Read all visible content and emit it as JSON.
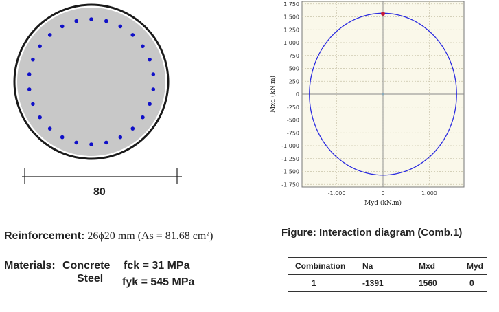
{
  "section": {
    "dimension_label": "80",
    "bar_count": 26
  },
  "reinforcement": {
    "label": "Reinforcement:",
    "value": "26ϕ20 mm (As = 81.68 cm²)"
  },
  "materials": {
    "label": "Materials:",
    "concrete_label": "Concrete",
    "concrete_value": "fck = 31 MPa",
    "steel_label": "Steel",
    "steel_value": "fyk = 545 MPa"
  },
  "figure_caption": "Figure: Interaction diagram (Comb.1)",
  "colors": {
    "section_fill": "#c8c8c8",
    "section_edge": "#1a1a1a",
    "bar_color": "#1010c8",
    "plot_bg": "#faf8ea",
    "curve_color": "#2a2ae0",
    "point_color": "#c41a3a",
    "grid_color": "#c8c2a8"
  },
  "chart_data": {
    "type": "line",
    "title": "",
    "xlabel": "Myd (kN.m)",
    "ylabel": "Mxd (kN.m)",
    "xlim": [
      -1750,
      1750
    ],
    "ylim": [
      -1800,
      1800
    ],
    "x_ticks": [
      -1000,
      0,
      1000
    ],
    "x_tick_labels": [
      "-1.000",
      "0",
      "1.000"
    ],
    "y_ticks": [
      1750,
      1500,
      1250,
      1000,
      750,
      500,
      250,
      0,
      -250,
      -500,
      -750,
      -1000,
      -1250,
      -1500,
      -1750
    ],
    "y_tick_labels": [
      "1.750",
      "1.500",
      "1.250",
      "1.000",
      "750",
      "500",
      "250",
      "0",
      "-250",
      "-500",
      "-750",
      "-1.000",
      "-1.250",
      "-1.500",
      "-1.750"
    ],
    "grid": true,
    "series": [
      {
        "curve": "interaction",
        "center": [
          0,
          0
        ],
        "radius_x": 1590,
        "radius_y": 1570
      }
    ],
    "design_point": {
      "x": 0,
      "y": 1560
    }
  },
  "table": {
    "headers": [
      "Combination",
      "Na",
      "Mxd",
      "Myd"
    ],
    "rows": [
      [
        "1",
        "-1391",
        "1560",
        "0"
      ]
    ]
  }
}
